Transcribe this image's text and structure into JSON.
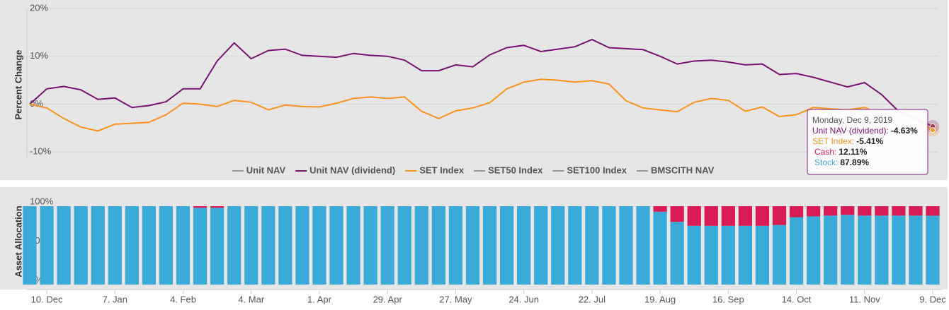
{
  "chart_data": [
    {
      "type": "line",
      "y_title": "Percent Change",
      "ylim": [
        -11,
        20
      ],
      "yticks": [
        {
          "value": 20,
          "label": "20%"
        },
        {
          "value": 10,
          "label": "10%"
        },
        {
          "value": 0,
          "label": "0%"
        },
        {
          "value": -10,
          "label": "-10%"
        }
      ],
      "grid": true,
      "legend": "bottom",
      "series": [
        {
          "name": "Unit NAV",
          "color": "#999999",
          "visible": false,
          "values": [
            null,
            null,
            null,
            null,
            null,
            null,
            null,
            null,
            null,
            null,
            null,
            null,
            null,
            null,
            null,
            null,
            null,
            null,
            null,
            null,
            null,
            null,
            null,
            null,
            null,
            null,
            null,
            null,
            null,
            null,
            null,
            null,
            null,
            null,
            null,
            null,
            null,
            null,
            null,
            null,
            null,
            null,
            null,
            null,
            null,
            null,
            null,
            null,
            null,
            null,
            null,
            null,
            null,
            null
          ]
        },
        {
          "name": "Unit NAV (dividend)",
          "color": "#7a1273",
          "visible": true,
          "values": [
            0,
            3.2,
            3.7,
            3.0,
            1.0,
            1.3,
            -0.7,
            -0.3,
            0.5,
            3.2,
            3.2,
            9.0,
            12.8,
            9.5,
            11.2,
            11.5,
            10.2,
            10.0,
            9.8,
            10.6,
            10.2,
            10.0,
            9.2,
            7.0,
            7.0,
            8.2,
            7.8,
            10.3,
            11.8,
            12.3,
            11.0,
            11.5,
            12.0,
            13.5,
            11.8,
            11.6,
            11.4,
            10.0,
            8.4,
            9.0,
            9.2,
            8.8,
            8.2,
            8.4,
            6.2,
            6.4,
            5.6,
            4.6,
            3.6,
            4.5,
            2.0,
            -1.5,
            -3.0,
            -4.63
          ]
        },
        {
          "name": "SET Index",
          "color": "#f7931e",
          "visible": true,
          "values": [
            0,
            -0.8,
            -3,
            -4.8,
            -5.6,
            -4.2,
            -4.0,
            -3.8,
            -2.2,
            0.2,
            0,
            -0.5,
            0.8,
            0.4,
            -1.2,
            -0.2,
            -0.5,
            -0.6,
            0.2,
            1.2,
            1.5,
            1.2,
            1.5,
            -1.5,
            -3.0,
            -1.4,
            -0.8,
            0.3,
            3.2,
            4.6,
            5.2,
            5.0,
            4.6,
            4.9,
            4.2,
            0.7,
            -0.8,
            -1.2,
            -1.6,
            0.4,
            1.2,
            0.8,
            -1.5,
            -0.6,
            -2.6,
            -2.2,
            -0.7,
            -1.0,
            -1.2,
            -0.7,
            -2.2,
            -1.9,
            -3.2,
            -5.41
          ]
        },
        {
          "name": "SET50 Index",
          "color": "#999999",
          "visible": false,
          "values": [
            null,
            null,
            null,
            null,
            null,
            null,
            null,
            null,
            null,
            null,
            null,
            null,
            null,
            null,
            null,
            null,
            null,
            null,
            null,
            null,
            null,
            null,
            null,
            null,
            null,
            null,
            null,
            null,
            null,
            null,
            null,
            null,
            null,
            null,
            null,
            null,
            null,
            null,
            null,
            null,
            null,
            null,
            null,
            null,
            null,
            null,
            null,
            null,
            null,
            null,
            null,
            null,
            null,
            null
          ]
        },
        {
          "name": "SET100 Index",
          "color": "#999999",
          "visible": false,
          "values": [
            null,
            null,
            null,
            null,
            null,
            null,
            null,
            null,
            null,
            null,
            null,
            null,
            null,
            null,
            null,
            null,
            null,
            null,
            null,
            null,
            null,
            null,
            null,
            null,
            null,
            null,
            null,
            null,
            null,
            null,
            null,
            null,
            null,
            null,
            null,
            null,
            null,
            null,
            null,
            null,
            null,
            null,
            null,
            null,
            null,
            null,
            null,
            null,
            null,
            null,
            null,
            null,
            null,
            null
          ]
        },
        {
          "name": "BMSCITH NAV",
          "color": "#999999",
          "visible": false,
          "values": [
            null,
            null,
            null,
            null,
            null,
            null,
            null,
            null,
            null,
            null,
            null,
            null,
            null,
            null,
            null,
            null,
            null,
            null,
            null,
            null,
            null,
            null,
            null,
            null,
            null,
            null,
            null,
            null,
            null,
            null,
            null,
            null,
            null,
            null,
            null,
            null,
            null,
            null,
            null,
            null,
            null,
            null,
            null,
            null,
            null,
            null,
            null,
            null,
            null,
            null,
            null,
            null,
            null,
            null
          ]
        }
      ],
      "tooltip": {
        "title": "Monday, Dec 9, 2019",
        "rows": [
          {
            "label": "Unit NAV (dividend):",
            "value": "-4.63%",
            "color": "#7a1273"
          },
          {
            "label": "SET Index:",
            "value": "-5.41%",
            "color": "#f7931e"
          },
          {
            "label": "Cash:",
            "value": "12.11%",
            "color": "#d81b55"
          },
          {
            "label": "Stock:",
            "value": "87.89%",
            "color": "#3aaad8"
          }
        ]
      }
    },
    {
      "type": "bar",
      "stacked": true,
      "y_title": "Asset Allocation",
      "ylim": [
        0,
        100
      ],
      "yticks": [
        {
          "value": 100,
          "label": "100%"
        },
        {
          "value": 50,
          "label": "50%"
        },
        {
          "value": 0,
          "label": "0%"
        }
      ],
      "categories": [
        null,
        "10. Dec",
        null,
        null,
        null,
        "7. Jan",
        null,
        null,
        null,
        "4. Feb",
        null,
        null,
        null,
        "4. Mar",
        null,
        null,
        null,
        "1. Apr",
        null,
        null,
        null,
        "29. Apr",
        null,
        null,
        null,
        "27. May",
        null,
        null,
        null,
        "24. Jun",
        null,
        null,
        null,
        "22. Jul",
        null,
        null,
        null,
        "19. Aug",
        null,
        null,
        null,
        "16. Sep",
        null,
        null,
        null,
        "14. Oct",
        null,
        null,
        null,
        "11. Nov",
        null,
        null,
        null,
        "9. Dec"
      ],
      "series": [
        {
          "name": "Stock",
          "color": "#3aaad8",
          "values": [
            100,
            100,
            100,
            100,
            100,
            100,
            100,
            100,
            100,
            100,
            98,
            98,
            100,
            100,
            100,
            100,
            100,
            100,
            100,
            100,
            100,
            100,
            100,
            100,
            100,
            100,
            100,
            100,
            100,
            100,
            100,
            100,
            100,
            100,
            100,
            100,
            100,
            93,
            80,
            75,
            75,
            75,
            75,
            75,
            76,
            86,
            87,
            88,
            89,
            88,
            88,
            88,
            88,
            87.89
          ]
        },
        {
          "name": "Cash",
          "color": "#d81b55",
          "values": [
            0,
            0,
            0,
            0,
            0,
            0,
            0,
            0,
            0,
            0,
            2,
            2,
            0,
            0,
            0,
            0,
            0,
            0,
            0,
            0,
            0,
            0,
            0,
            0,
            0,
            0,
            0,
            0,
            0,
            0,
            0,
            0,
            0,
            0,
            0,
            0,
            0,
            7,
            20,
            25,
            25,
            25,
            25,
            25,
            24,
            14,
            13,
            12,
            11,
            12,
            12,
            12,
            12,
            12.11
          ]
        }
      ]
    }
  ]
}
